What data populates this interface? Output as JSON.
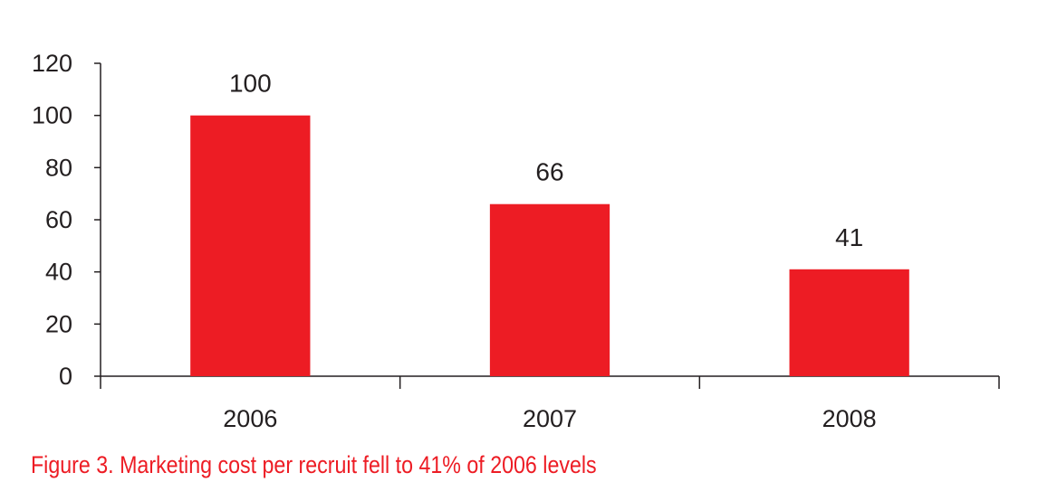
{
  "chart_data": {
    "type": "bar",
    "categories": [
      "2006",
      "2007",
      "2008"
    ],
    "values": [
      100,
      66,
      41
    ],
    "data_labels": [
      "100",
      "66",
      "41"
    ],
    "title": "",
    "xlabel": "",
    "ylabel": "",
    "ylim": [
      0,
      120
    ],
    "yticks": [
      0,
      20,
      40,
      60,
      80,
      100,
      120
    ],
    "grid": false,
    "legend": "none",
    "bar_color": "#ed1c24",
    "axis_color": "#231f20"
  },
  "caption": "Figure 3. Marketing cost per recruit fell to 41% of 2006 levels"
}
